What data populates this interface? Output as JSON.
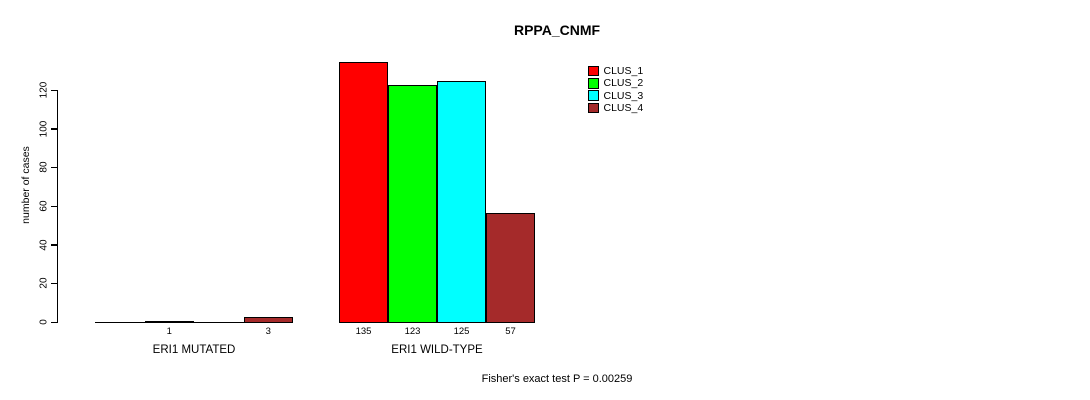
{
  "chart_data": {
    "type": "bar",
    "title": "RPPA_CNMF",
    "ylabel": "number of cases",
    "xlabel": "",
    "yticks": [
      0,
      20,
      40,
      60,
      80,
      100,
      120
    ],
    "ylim": [
      0,
      140
    ],
    "grid": false,
    "legend_position": "top-right-inside",
    "categories": [
      "ERI1 MUTATED",
      "ERI1 WILD-TYPE"
    ],
    "series": [
      {
        "name": "CLUS_1",
        "color": "#ff0000",
        "values": [
          0,
          135
        ]
      },
      {
        "name": "CLUS_2",
        "color": "#00ff00",
        "values": [
          1,
          123
        ]
      },
      {
        "name": "CLUS_3",
        "color": "#00ffff",
        "values": [
          0,
          125
        ]
      },
      {
        "name": "CLUS_4",
        "color": "#a52a2a",
        "values": [
          3,
          57
        ]
      }
    ],
    "groups": [
      {
        "label": "ERI1 MUTATED",
        "values": [
          0,
          1,
          0,
          3
        ],
        "bar_labels": [
          "",
          "1",
          "",
          "3"
        ]
      },
      {
        "label": "ERI1 WILD-TYPE",
        "values": [
          135,
          123,
          125,
          57
        ],
        "bar_labels": [
          "135",
          "123",
          "125",
          "57"
        ]
      }
    ],
    "legend": [
      {
        "label": "CLUS_1",
        "color": "#ff0000"
      },
      {
        "label": "CLUS_2",
        "color": "#00ff00"
      },
      {
        "label": "CLUS_3",
        "color": "#00ffff"
      },
      {
        "label": "CLUS_4",
        "color": "#a52a2a"
      }
    ],
    "footnote": "Fisher's exact test P = 0.00259",
    "axis_color": "#000000",
    "text_color": "#000000",
    "background_color": "#ffffff"
  }
}
